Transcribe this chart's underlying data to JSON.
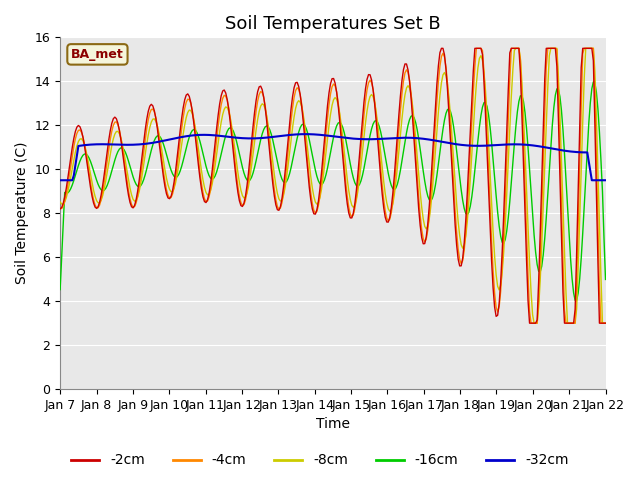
{
  "title": "Soil Temperatures Set B",
  "xlabel": "Time",
  "ylabel": "Soil Temperature (C)",
  "annotation": "BA_met",
  "ylim": [
    0,
    16
  ],
  "yticks": [
    0,
    2,
    4,
    6,
    8,
    10,
    12,
    14,
    16
  ],
  "x_labels": [
    "Jan 7",
    "Jan 8",
    "Jan 9",
    "Jan 10",
    "Jan 11",
    "Jan 12",
    "Jan 13",
    "Jan 14",
    "Jan 15",
    "Jan 16",
    "Jan 17",
    "Jan 18",
    "Jan 19",
    "Jan 20",
    "Jan 21",
    "Jan 22"
  ],
  "colors": {
    "-2cm": "#cc0000",
    "-4cm": "#ff8800",
    "-8cm": "#cccc00",
    "-16cm": "#00cc00",
    "-32cm": "#0000cc"
  },
  "background_color": "#e8e8e8",
  "fig_background": "#ffffff",
  "title_fontsize": 13,
  "axis_label_fontsize": 10,
  "tick_fontsize": 9,
  "legend_fontsize": 10
}
